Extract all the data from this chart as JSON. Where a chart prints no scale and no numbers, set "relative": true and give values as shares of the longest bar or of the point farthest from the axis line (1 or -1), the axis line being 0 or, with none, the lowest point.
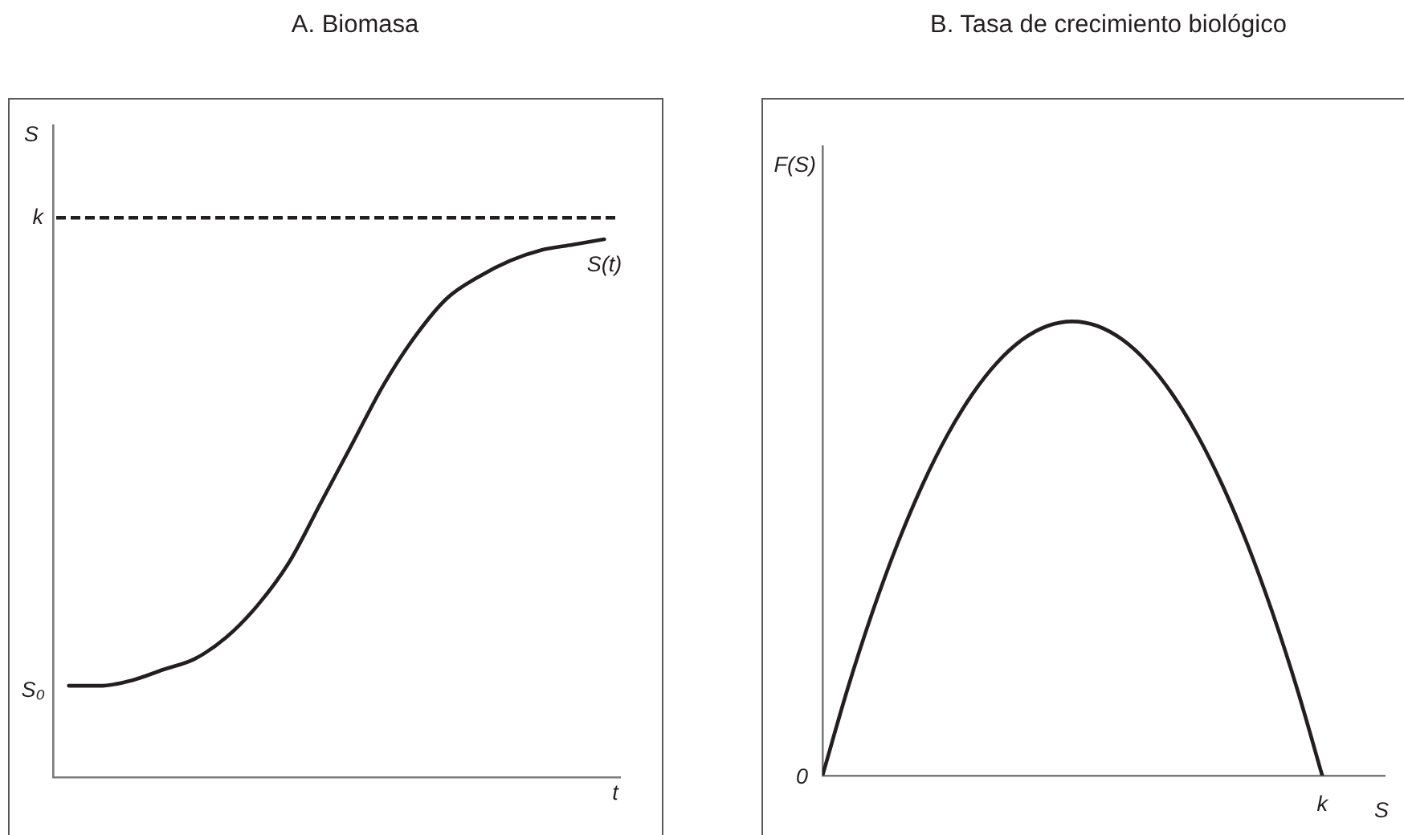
{
  "chart_data": [
    {
      "type": "line",
      "title": "A. Biomasa",
      "xlabel": "t",
      "ylabel": "S",
      "relative": true,
      "categories": [
        null,
        null,
        null,
        null,
        null,
        null,
        null,
        null,
        null,
        null,
        null,
        null,
        null,
        null,
        null,
        null,
        null,
        null
      ],
      "series": [
        {
          "name": "S(t)",
          "color": "#231f20",
          "values": [
            0.17,
            0.17,
            0.18,
            0.2,
            0.22,
            0.26,
            0.32,
            0.4,
            0.51,
            0.62,
            0.73,
            0.82,
            0.89,
            0.93,
            0.96,
            0.98,
            0.99,
            1
          ]
        }
      ],
      "ref_lines": [
        {
          "axis": "y",
          "value": 1.04,
          "label": "k",
          "color": "#231f20",
          "line_style": "dashed"
        }
      ],
      "annotations": [
        "S₀"
      ]
    },
    {
      "type": "line",
      "title": "B. Tasa de crecimiento biológico",
      "xlabel": "S",
      "ylabel": "F(S)",
      "relative": true,
      "categories": [
        null,
        null,
        null,
        null,
        null,
        null,
        null,
        null,
        null,
        null,
        null,
        null,
        null,
        null,
        null,
        null,
        null,
        null,
        null,
        null,
        null
      ],
      "series": [
        {
          "color": "#231f20",
          "values": [
            0,
            0.19,
            0.36,
            0.51,
            0.64,
            0.75,
            0.84,
            0.91,
            0.96,
            0.99,
            1,
            0.99,
            0.96,
            0.91,
            0.84,
            0.75,
            0.64,
            0.51,
            0.36,
            0.19,
            0
          ]
        }
      ],
      "annotations": [
        "0",
        "k"
      ]
    }
  ]
}
